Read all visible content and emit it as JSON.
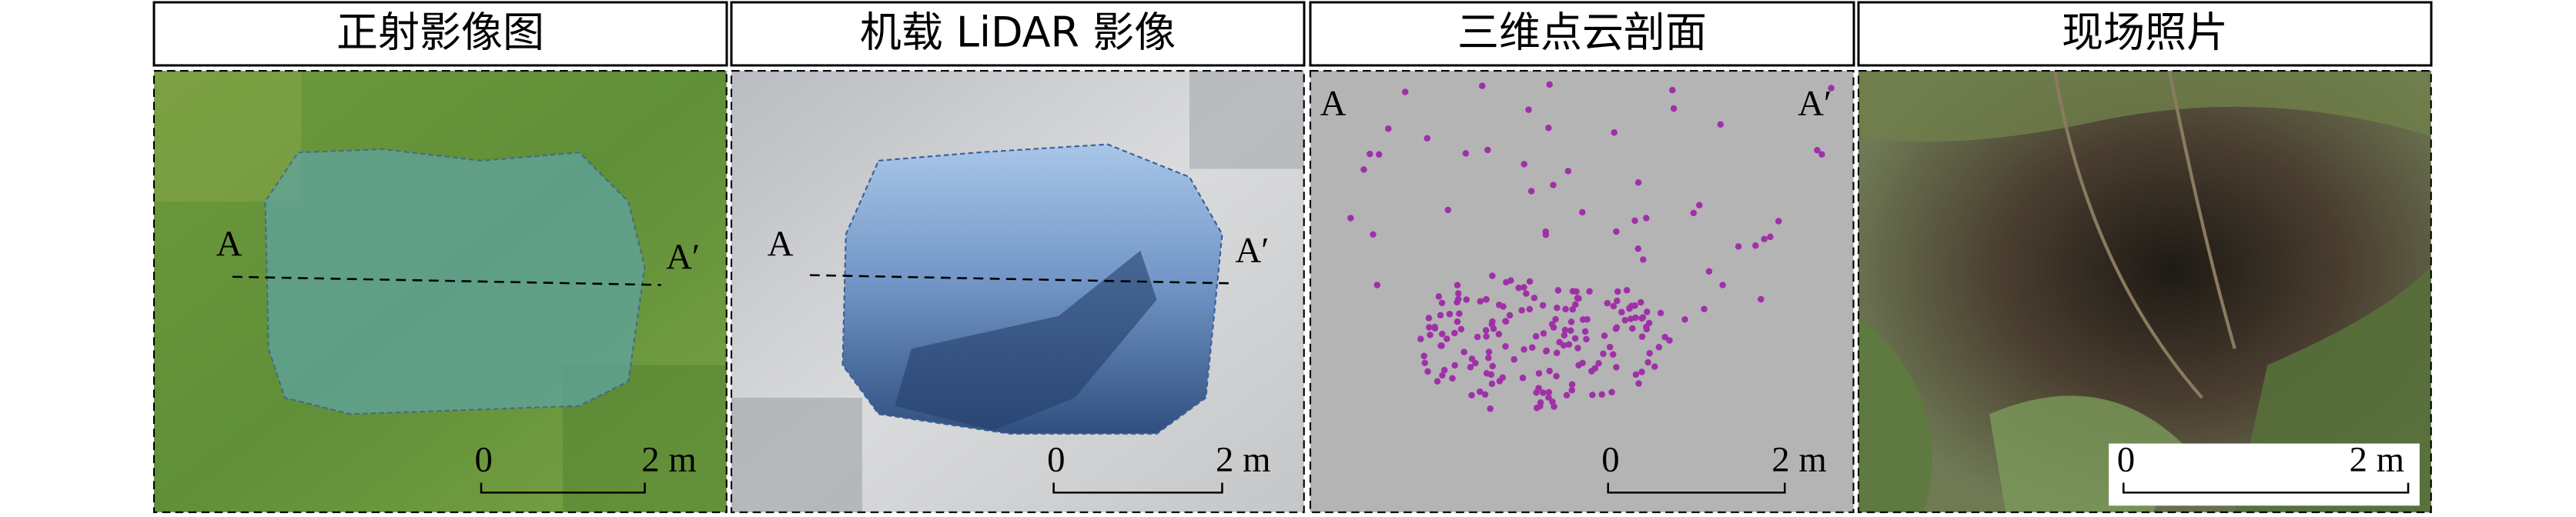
{
  "panels": [
    {
      "title": "正射影像图",
      "label_a": "A",
      "label_a_prime": "A′",
      "scale_zero": "0",
      "scale_length": "2 m"
    },
    {
      "title": "机载 LiDAR 影像",
      "label_a": "A",
      "label_a_prime": "A′",
      "scale_zero": "0",
      "scale_length": "2 m"
    },
    {
      "title": "三维点云剖面",
      "label_a": "A",
      "label_a_prime": "A′",
      "scale_zero": "0",
      "scale_length": "2 m"
    },
    {
      "title": "现场照片",
      "scale_zero": "0",
      "scale_length": "2 m"
    }
  ]
}
